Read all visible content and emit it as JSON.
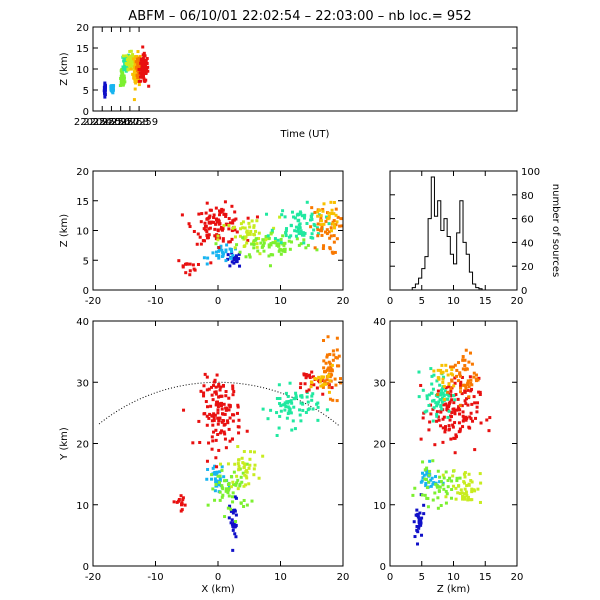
{
  "title": "ABFM – 06/10/01 22:02:54 – 22:03:00 – nb loc.=     952",
  "colors": {
    "frame": "#000000",
    "scale": [
      "#1010c8",
      "#18b4f0",
      "#20e8a0",
      "#7cf030",
      "#c8ec20",
      "#f8c000",
      "#f87800",
      "#e81010"
    ]
  },
  "chart_data": [
    {
      "id": "time-height",
      "type": "scatter",
      "xlabel": "Time (UT)",
      "ylabel": "Z (km)",
      "xlim": [
        220254,
        220300
      ],
      "ylim": [
        0,
        20
      ],
      "xticks": [
        220254,
        220255,
        220256,
        220257,
        220258,
        220259
      ],
      "yticks": [
        0,
        5,
        10,
        15,
        20
      ],
      "clusters": [
        {
          "x": 220255.3,
          "y": 5.2,
          "sx": 0.05,
          "sy": 0.9,
          "n": 30,
          "c": 0
        },
        {
          "x": 220256.1,
          "y": 5.3,
          "sx": 0.1,
          "sy": 0.6,
          "n": 35,
          "c": 1
        },
        {
          "x": 220257.2,
          "y": 7.5,
          "sx": 0.15,
          "sy": 1.2,
          "n": 45,
          "c": 3
        },
        {
          "x": 220257.6,
          "y": 11.5,
          "sx": 0.2,
          "sy": 1.5,
          "n": 55,
          "c": 2
        },
        {
          "x": 220258.0,
          "y": 12.0,
          "sx": 0.25,
          "sy": 1.2,
          "n": 55,
          "c": 4
        },
        {
          "x": 220258.7,
          "y": 9.5,
          "sx": 0.25,
          "sy": 2.5,
          "n": 55,
          "c": 5
        },
        {
          "x": 220258.9,
          "y": 10.5,
          "sx": 0.15,
          "sy": 1.2,
          "n": 30,
          "c": 6
        },
        {
          "x": 220259.5,
          "y": 10.0,
          "sx": 0.3,
          "sy": 2.0,
          "n": 90,
          "c": 7
        }
      ]
    },
    {
      "id": "x-z",
      "type": "scatter",
      "xlabel": "",
      "ylabel": "Z (km)",
      "xlim": [
        -20,
        20
      ],
      "ylim": [
        0,
        20
      ],
      "xticks": [
        -20,
        -10,
        0,
        10,
        20
      ],
      "yticks": [
        0,
        5,
        10,
        15,
        20
      ],
      "clusters": [
        {
          "x": 2.5,
          "y": 5.0,
          "sx": 0.8,
          "sy": 0.8,
          "n": 20,
          "c": 0
        },
        {
          "x": 1.0,
          "y": 6.0,
          "sx": 1.5,
          "sy": 0.8,
          "n": 30,
          "c": 1
        },
        {
          "x": 0.0,
          "y": 11.0,
          "sx": 2.5,
          "sy": 2.0,
          "n": 110,
          "c": 7
        },
        {
          "x": -5.0,
          "y": 4.0,
          "sx": 1.0,
          "sy": 0.8,
          "n": 14,
          "c": 7
        },
        {
          "x": 5.0,
          "y": 9.0,
          "sx": 3.0,
          "sy": 2.0,
          "n": 50,
          "c": 4
        },
        {
          "x": 9.0,
          "y": 7.5,
          "sx": 4.0,
          "sy": 1.5,
          "n": 70,
          "c": 3
        },
        {
          "x": 13.0,
          "y": 11.0,
          "sx": 2.5,
          "sy": 2.0,
          "n": 70,
          "c": 2
        },
        {
          "x": 17.0,
          "y": 10.0,
          "sx": 1.5,
          "sy": 2.5,
          "n": 45,
          "c": 6
        },
        {
          "x": 17.5,
          "y": 12.5,
          "sx": 1.0,
          "sy": 2.0,
          "n": 25,
          "c": 5
        }
      ]
    },
    {
      "id": "height-histogram",
      "type": "bar",
      "ylabel": "number of sources",
      "xlim": [
        0,
        20
      ],
      "ylim": [
        0,
        100
      ],
      "xticks": [
        0,
        5,
        10,
        15,
        20
      ],
      "yticks": [
        0,
        20,
        40,
        60,
        80,
        100
      ],
      "bin_width": 0.5,
      "values": [
        0,
        0,
        0,
        0,
        0,
        0,
        0,
        2,
        5,
        10,
        18,
        28,
        60,
        95,
        62,
        75,
        50,
        60,
        45,
        30,
        22,
        48,
        75,
        40,
        30,
        15,
        5,
        2,
        1,
        0,
        0,
        0,
        0,
        0,
        0,
        0,
        0,
        0,
        0,
        0
      ]
    },
    {
      "id": "x-y",
      "type": "scatter",
      "xlabel": "X (km)",
      "ylabel": "Y (km)",
      "xlim": [
        -20,
        20
      ],
      "ylim": [
        0,
        40
      ],
      "xticks": [
        -20,
        -10,
        0,
        10,
        20
      ],
      "yticks": [
        0,
        10,
        20,
        30,
        40
      ],
      "range_circle": {
        "cx": 0,
        "cy": 0,
        "r": 30
      },
      "clusters": [
        {
          "x": 2.5,
          "y": 7.0,
          "sx": 0.4,
          "sy": 2.5,
          "n": 30,
          "c": 0
        },
        {
          "x": 0.0,
          "y": 14.0,
          "sx": 1.0,
          "sy": 1.5,
          "n": 30,
          "c": 1
        },
        {
          "x": 2.0,
          "y": 12.5,
          "sx": 2.0,
          "sy": 2.5,
          "n": 55,
          "c": 3
        },
        {
          "x": 4.0,
          "y": 16.0,
          "sx": 1.5,
          "sy": 2.0,
          "n": 40,
          "c": 4
        },
        {
          "x": -6.0,
          "y": 10.5,
          "sx": 1.0,
          "sy": 0.8,
          "n": 14,
          "c": 7
        },
        {
          "x": 0.5,
          "y": 25.0,
          "sx": 2.0,
          "sy": 3.5,
          "n": 130,
          "c": 7
        },
        {
          "x": 12.0,
          "y": 26.0,
          "sx": 2.5,
          "sy": 2.0,
          "n": 70,
          "c": 2
        },
        {
          "x": 15.0,
          "y": 30.0,
          "sx": 1.5,
          "sy": 1.5,
          "n": 25,
          "c": 7
        },
        {
          "x": 18.0,
          "y": 32.0,
          "sx": 1.2,
          "sy": 2.5,
          "n": 50,
          "c": 6
        },
        {
          "x": 17.0,
          "y": 30.0,
          "sx": 1.0,
          "sy": 1.5,
          "n": 20,
          "c": 5
        }
      ]
    },
    {
      "id": "z-y",
      "type": "scatter",
      "xlabel": "Z (km)",
      "ylabel": "",
      "xlim": [
        0,
        20
      ],
      "ylim": [
        0,
        40
      ],
      "xticks": [
        0,
        5,
        10,
        15,
        20
      ],
      "yticks": [
        0,
        10,
        20,
        30,
        40
      ],
      "clusters": [
        {
          "x": 4.5,
          "y": 7.0,
          "sx": 0.6,
          "sy": 2.0,
          "n": 28,
          "c": 0
        },
        {
          "x": 6.0,
          "y": 14.0,
          "sx": 1.0,
          "sy": 1.5,
          "n": 30,
          "c": 1
        },
        {
          "x": 7.5,
          "y": 13.0,
          "sx": 2.0,
          "sy": 2.0,
          "n": 50,
          "c": 3
        },
        {
          "x": 12.0,
          "y": 13.0,
          "sx": 1.5,
          "sy": 1.8,
          "n": 45,
          "c": 4
        },
        {
          "x": 10.0,
          "y": 25.0,
          "sx": 2.5,
          "sy": 3.5,
          "n": 130,
          "c": 7
        },
        {
          "x": 7.5,
          "y": 28.0,
          "sx": 1.5,
          "sy": 2.5,
          "n": 60,
          "c": 2
        },
        {
          "x": 11.5,
          "y": 31.0,
          "sx": 1.5,
          "sy": 2.5,
          "n": 50,
          "c": 6
        },
        {
          "x": 9.0,
          "y": 31.0,
          "sx": 1.0,
          "sy": 2.0,
          "n": 20,
          "c": 5
        }
      ]
    }
  ]
}
